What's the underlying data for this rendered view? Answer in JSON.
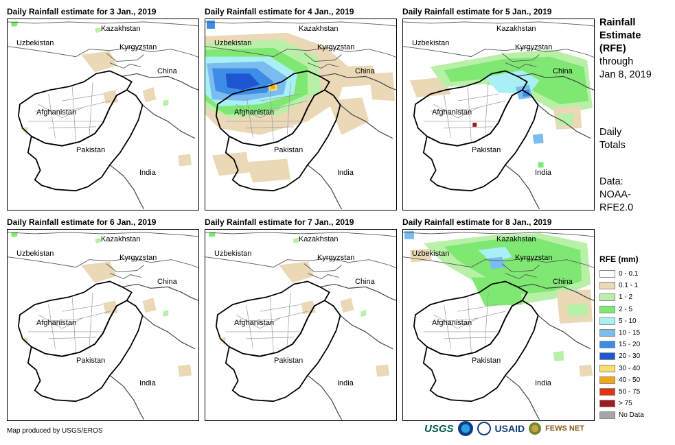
{
  "panels": [
    {
      "title": "Daily Rainfall estimate for 3 Jan., 2019",
      "rain": "low"
    },
    {
      "title": "Daily Rainfall estimate for 4 Jan., 2019",
      "rain": "heavy-west"
    },
    {
      "title": "Daily Rainfall estimate for 5 Jan., 2019",
      "rain": "northeast"
    },
    {
      "title": "Daily Rainfall estimate for 6 Jan., 2019",
      "rain": "low"
    },
    {
      "title": "Daily Rainfall estimate for 7 Jan., 2019",
      "rain": "low"
    },
    {
      "title": "Daily Rainfall estimate for 8 Jan., 2019",
      "rain": "north"
    }
  ],
  "map_labels": {
    "kazakhstan": "Kazakhstan",
    "uzbekistan": "Uzbekistan",
    "kyrgyzstan": "Kyrgyzstan",
    "china": "China",
    "afghanistan": "Afghanistan",
    "pakistan": "Pakistan",
    "india": "India"
  },
  "sidebar": {
    "title_lines": [
      "Rainfall",
      "Estimate",
      "(RFE)"
    ],
    "through": "through",
    "date": "Jan 8, 2019",
    "daily": "Daily",
    "totals": "Totals",
    "data_label": "Data:",
    "data_source_1": "NOAA-",
    "data_source_2": "RFE2.0"
  },
  "legend": {
    "title": "RFE (mm)",
    "items": [
      {
        "label": "0 - 0.1",
        "color": "#ffffff"
      },
      {
        "label": "0.1 - 1",
        "color": "#ead8b6"
      },
      {
        "label": "1 - 2",
        "color": "#b8f0a8"
      },
      {
        "label": "2 - 5",
        "color": "#7ee873"
      },
      {
        "label": "5 - 10",
        "color": "#a8f0f5"
      },
      {
        "label": "10 - 15",
        "color": "#7bbcf0"
      },
      {
        "label": "15 - 20",
        "color": "#3d8de6"
      },
      {
        "label": "20 - 30",
        "color": "#1e56d2"
      },
      {
        "label": "30 - 40",
        "color": "#f8de6e"
      },
      {
        "label": "40 - 50",
        "color": "#f6a614"
      },
      {
        "label": "50 - 75",
        "color": "#e43314"
      },
      {
        "label": "> 75",
        "color": "#9e1e1e"
      },
      {
        "label": "No Data",
        "color": "#a6a6a6"
      }
    ]
  },
  "credit": "Map produced by USGS/EROS",
  "logos": {
    "usgs": "USGS",
    "usaid": "USAID",
    "fews": "FEWS NET"
  }
}
